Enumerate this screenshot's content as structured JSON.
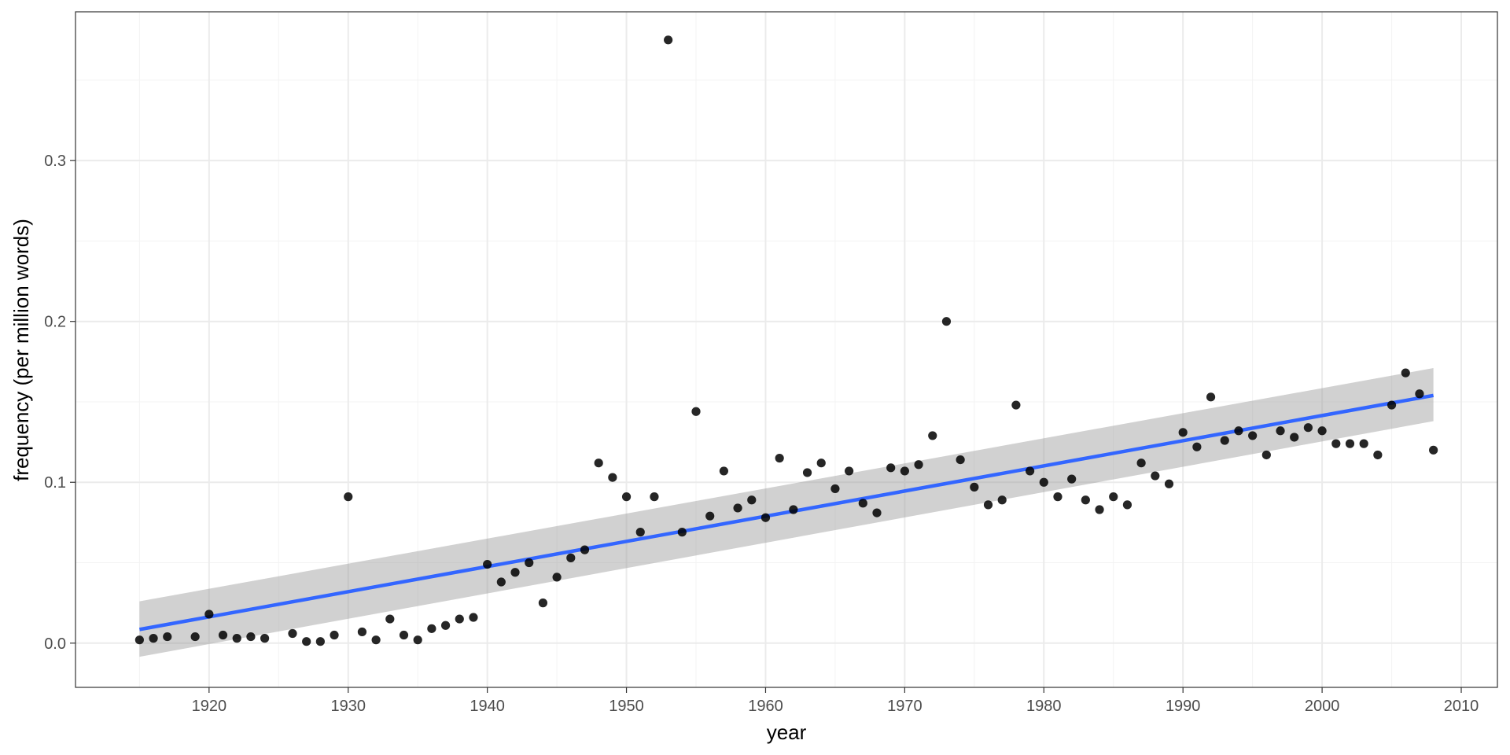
{
  "chart_data": {
    "type": "scatter",
    "xlabel": "year",
    "ylabel": "frequency (per million words)",
    "xlim": [
      1910.4,
      2012.6
    ],
    "ylim": [
      -0.0275,
      0.3925
    ],
    "x_ticks": [
      1920,
      1930,
      1940,
      1950,
      1960,
      1970,
      1980,
      1990,
      2000,
      2010
    ],
    "y_ticks": [
      0.0,
      0.1,
      0.2,
      0.3
    ],
    "y_tick_labels": [
      "0.0",
      "0.1",
      "0.2",
      "0.3"
    ],
    "grid": true,
    "legend": "none",
    "colors": {
      "points": "#000000",
      "trend_line": "#3366FF",
      "confidence_band": "#999999",
      "grid_major": "#ebebeb",
      "grid_minor": "#f3f3f3",
      "panel_border": "#333333"
    },
    "series": [
      {
        "kind": "points",
        "x": [
          1915,
          1916,
          1917,
          1919,
          1920,
          1921,
          1922,
          1923,
          1924,
          1926,
          1927,
          1928,
          1929,
          1930,
          1931,
          1932,
          1933,
          1934,
          1935,
          1936,
          1937,
          1938,
          1939,
          1940,
          1941,
          1942,
          1943,
          1944,
          1945,
          1946,
          1947,
          1948,
          1949,
          1950,
          1951,
          1952,
          1953,
          1954,
          1955,
          1956,
          1957,
          1958,
          1959,
          1960,
          1961,
          1962,
          1963,
          1964,
          1965,
          1966,
          1967,
          1968,
          1969,
          1970,
          1971,
          1972,
          1973,
          1974,
          1975,
          1976,
          1977,
          1978,
          1979,
          1980,
          1981,
          1982,
          1983,
          1984,
          1985,
          1986,
          1987,
          1988,
          1989,
          1990,
          1991,
          1992,
          1993,
          1994,
          1995,
          1996,
          1997,
          1998,
          1999,
          2000,
          2001,
          2002,
          2003,
          2004,
          2005,
          2006,
          2007,
          2008
        ],
        "y": [
          0.002,
          0.003,
          0.004,
          0.004,
          0.018,
          0.005,
          0.003,
          0.004,
          0.003,
          0.006,
          0.001,
          0.001,
          0.005,
          0.091,
          0.007,
          0.002,
          0.015,
          0.005,
          0.002,
          0.009,
          0.011,
          0.015,
          0.016,
          0.049,
          0.038,
          0.044,
          0.05,
          0.025,
          0.041,
          0.053,
          0.058,
          0.112,
          0.103,
          0.091,
          0.069,
          0.091,
          0.375,
          0.069,
          0.144,
          0.079,
          0.107,
          0.084,
          0.089,
          0.078,
          0.115,
          0.083,
          0.106,
          0.112,
          0.096,
          0.107,
          0.087,
          0.081,
          0.109,
          0.107,
          0.111,
          0.129,
          0.2,
          0.114,
          0.097,
          0.086,
          0.089,
          0.148,
          0.107,
          0.1,
          0.091,
          0.102,
          0.089,
          0.083,
          0.091,
          0.086,
          0.112,
          0.104,
          0.099,
          0.131,
          0.122,
          0.153,
          0.126,
          0.132,
          0.129,
          0.117,
          0.132,
          0.128,
          0.134,
          0.132,
          0.124,
          0.124,
          0.124,
          0.117,
          0.148,
          0.168,
          0.155,
          0.12
        ]
      },
      {
        "kind": "trend",
        "x": [
          1915,
          2008
        ],
        "y": [
          0.0085,
          0.154
        ],
        "band_lower": [
          -0.0085,
          0.138
        ],
        "band_upper": [
          0.026,
          0.171
        ]
      }
    ]
  }
}
